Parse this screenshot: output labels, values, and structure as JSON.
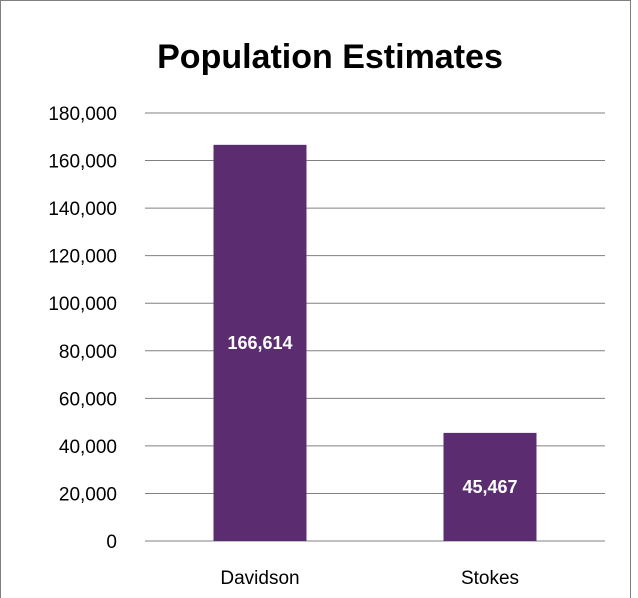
{
  "chart_data": {
    "type": "bar",
    "title": "Population Estimates",
    "categories": [
      "Davidson",
      "Stokes"
    ],
    "values": [
      166614,
      45467
    ],
    "data_labels": [
      "166,614",
      "45,467"
    ],
    "ylim": [
      0,
      180000
    ],
    "ytick_values": [
      0,
      20000,
      40000,
      60000,
      80000,
      100000,
      120000,
      140000,
      160000,
      180000
    ],
    "ytick_labels": [
      "0",
      "20,000",
      "40,000",
      "60,000",
      "80,000",
      "100,000",
      "120,000",
      "140,000",
      "160,000",
      "180,000"
    ],
    "grid": true,
    "legend": "none",
    "bar_color": "#5B2C6F",
    "data_label_color": "#ffffff",
    "grid_color": "#808080",
    "frame_color": "#808080"
  }
}
